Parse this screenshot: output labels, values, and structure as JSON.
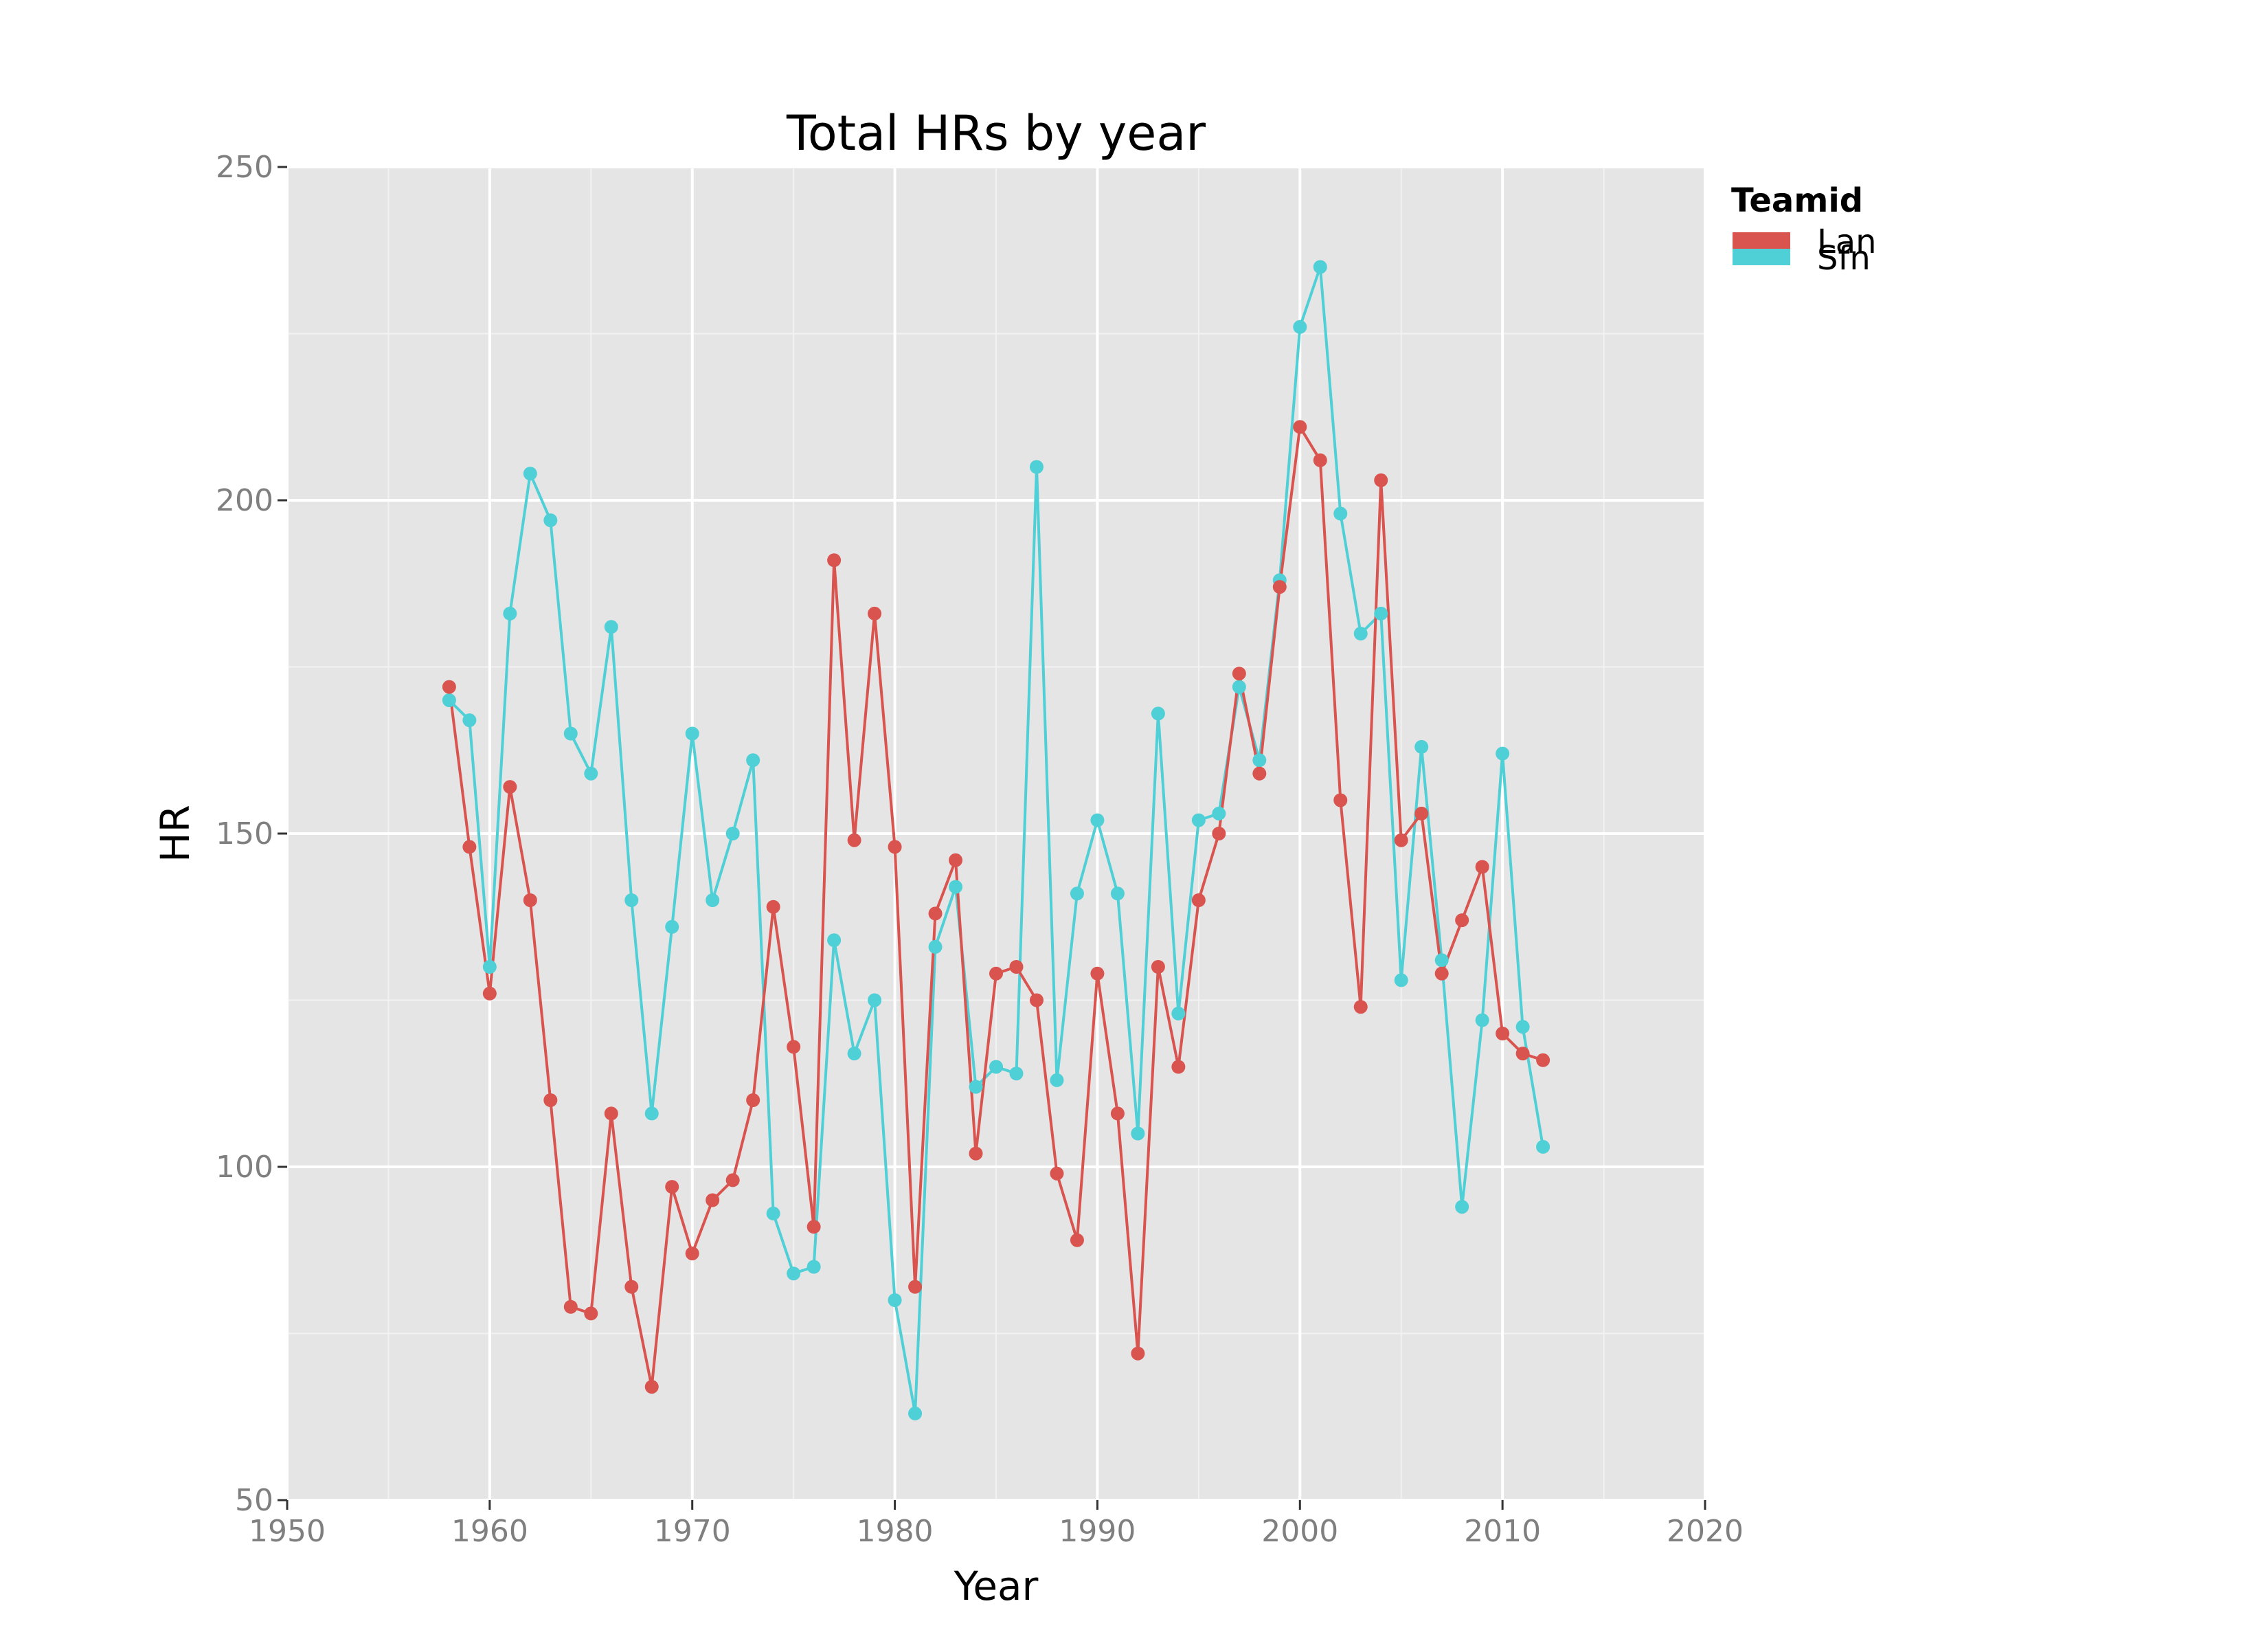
{
  "chart_data": {
    "type": "line",
    "title": "Total HRs by year",
    "xlabel": "Year",
    "ylabel": "HR",
    "xlim": [
      1950,
      2020
    ],
    "ylim": [
      50,
      250
    ],
    "x_ticks": [
      1950,
      1960,
      1970,
      1980,
      1990,
      2000,
      2010,
      2020
    ],
    "y_ticks": [
      50,
      100,
      150,
      200,
      250
    ],
    "grid": true,
    "markers": true,
    "legend": {
      "title": "Teamid",
      "position": "right-top"
    },
    "series": [
      {
        "name": "Lan",
        "color": "#d9534f",
        "points": [
          [
            1958,
            172
          ],
          [
            1959,
            148
          ],
          [
            1960,
            126
          ],
          [
            1961,
            157
          ],
          [
            1962,
            140
          ],
          [
            1963,
            110
          ],
          [
            1964,
            79
          ],
          [
            1965,
            78
          ],
          [
            1966,
            108
          ],
          [
            1967,
            82
          ],
          [
            1968,
            67
          ],
          [
            1969,
            97
          ],
          [
            1970,
            87
          ],
          [
            1971,
            95
          ],
          [
            1972,
            98
          ],
          [
            1973,
            110
          ],
          [
            1974,
            139
          ],
          [
            1975,
            118
          ],
          [
            1976,
            91
          ],
          [
            1977,
            191
          ],
          [
            1978,
            149
          ],
          [
            1979,
            183
          ],
          [
            1980,
            148
          ],
          [
            1981,
            82
          ],
          [
            1982,
            138
          ],
          [
            1983,
            146
          ],
          [
            1984,
            102
          ],
          [
            1985,
            129
          ],
          [
            1986,
            130
          ],
          [
            1987,
            125
          ],
          [
            1988,
            99
          ],
          [
            1989,
            89
          ],
          [
            1990,
            129
          ],
          [
            1991,
            108
          ],
          [
            1992,
            72
          ],
          [
            1993,
            130
          ],
          [
            1994,
            115
          ],
          [
            1995,
            140
          ],
          [
            1996,
            150
          ],
          [
            1997,
            174
          ],
          [
            1998,
            159
          ],
          [
            1999,
            187
          ],
          [
            2000,
            211
          ],
          [
            2001,
            206
          ],
          [
            2002,
            155
          ],
          [
            2003,
            124
          ],
          [
            2004,
            203
          ],
          [
            2005,
            149
          ],
          [
            2006,
            153
          ],
          [
            2007,
            129
          ],
          [
            2008,
            137
          ],
          [
            2009,
            145
          ],
          [
            2010,
            120
          ],
          [
            2011,
            117
          ],
          [
            2012,
            116
          ]
        ]
      },
      {
        "name": "Sfn",
        "color": "#4fcfd6",
        "points": [
          [
            1958,
            170
          ],
          [
            1959,
            167
          ],
          [
            1960,
            130
          ],
          [
            1961,
            183
          ],
          [
            1962,
            204
          ],
          [
            1963,
            197
          ],
          [
            1964,
            165
          ],
          [
            1965,
            159
          ],
          [
            1966,
            181
          ],
          [
            1967,
            140
          ],
          [
            1968,
            108
          ],
          [
            1969,
            136
          ],
          [
            1970,
            165
          ],
          [
            1971,
            140
          ],
          [
            1972,
            150
          ],
          [
            1973,
            161
          ],
          [
            1974,
            93
          ],
          [
            1975,
            84
          ],
          [
            1976,
            85
          ],
          [
            1977,
            134
          ],
          [
            1978,
            117
          ],
          [
            1979,
            125
          ],
          [
            1980,
            80
          ],
          [
            1981,
            63
          ],
          [
            1982,
            133
          ],
          [
            1983,
            142
          ],
          [
            1984,
            112
          ],
          [
            1985,
            115
          ],
          [
            1986,
            114
          ],
          [
            1987,
            205
          ],
          [
            1988,
            113
          ],
          [
            1989,
            141
          ],
          [
            1990,
            152
          ],
          [
            1991,
            141
          ],
          [
            1992,
            105
          ],
          [
            1993,
            168
          ],
          [
            1994,
            123
          ],
          [
            1995,
            152
          ],
          [
            1996,
            153
          ],
          [
            1997,
            172
          ],
          [
            1998,
            161
          ],
          [
            1999,
            188
          ],
          [
            2000,
            226
          ],
          [
            2001,
            235
          ],
          [
            2002,
            198
          ],
          [
            2003,
            180
          ],
          [
            2004,
            183
          ],
          [
            2005,
            128
          ],
          [
            2006,
            163
          ],
          [
            2007,
            131
          ],
          [
            2008,
            94
          ],
          [
            2009,
            122
          ],
          [
            2010,
            162
          ],
          [
            2011,
            121
          ],
          [
            2012,
            103
          ]
        ]
      }
    ]
  }
}
